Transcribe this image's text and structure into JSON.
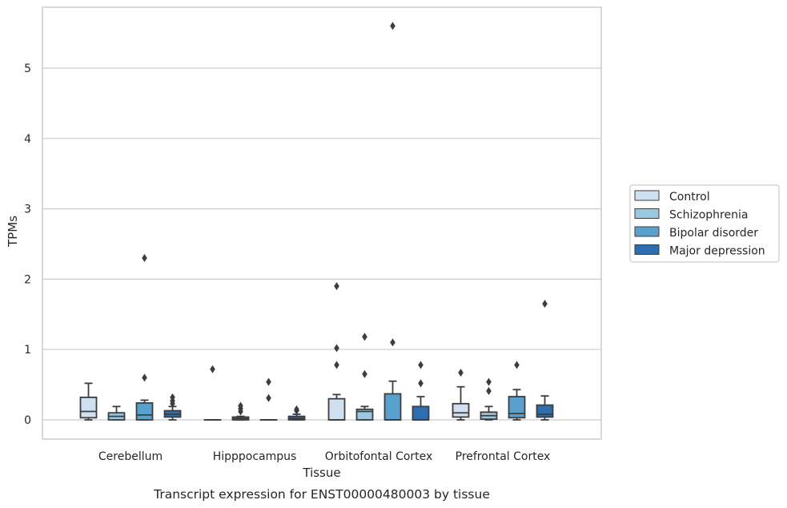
{
  "chart_data": {
    "type": "box",
    "title": "",
    "caption": "Transcript expression for ENST00000480003 by tissue",
    "xlabel": "Tissue",
    "ylabel": "TPMs",
    "ylim": [
      -0.27,
      5.87
    ],
    "yticks": [
      0,
      1,
      2,
      3,
      4,
      5
    ],
    "grid": "horizontal",
    "legend_position": "right",
    "categories": [
      "Cerebellum",
      "Hipppocampus",
      "Orbitofontal Cortex",
      "Prefrontal Cortex"
    ],
    "series": [
      {
        "name": "Control",
        "color": "#cfe0f1",
        "boxes": [
          {
            "whisker_low": 0.0,
            "q1": 0.03,
            "median": 0.12,
            "q3": 0.32,
            "whisker_high": 0.52,
            "outliers": []
          },
          {
            "whisker_low": 0.0,
            "q1": 0.0,
            "median": 0.0,
            "q3": 0.0,
            "whisker_high": 0.0,
            "outliers": [
              0.72
            ]
          },
          {
            "whisker_low": 0.0,
            "q1": 0.0,
            "median": 0.0,
            "q3": 0.3,
            "whisker_high": 0.36,
            "outliers": [
              0.78,
              1.02,
              1.9
            ]
          },
          {
            "whisker_low": 0.0,
            "q1": 0.04,
            "median": 0.1,
            "q3": 0.23,
            "whisker_high": 0.47,
            "outliers": [
              0.67
            ]
          }
        ]
      },
      {
        "name": "Schizophrenia",
        "color": "#9ac8e0",
        "boxes": [
          {
            "whisker_low": 0.0,
            "q1": 0.0,
            "median": 0.05,
            "q3": 0.1,
            "whisker_high": 0.19,
            "outliers": []
          },
          {
            "whisker_low": 0.0,
            "q1": 0.0,
            "median": 0.02,
            "q3": 0.04,
            "whisker_high": 0.05,
            "outliers": [
              0.12,
              0.16,
              0.2
            ]
          },
          {
            "whisker_low": 0.0,
            "q1": 0.0,
            "median": 0.12,
            "q3": 0.15,
            "whisker_high": 0.19,
            "outliers": [
              0.65,
              1.18
            ]
          },
          {
            "whisker_low": 0.0,
            "q1": 0.01,
            "median": 0.06,
            "q3": 0.11,
            "whisker_high": 0.19,
            "outliers": [
              0.41,
              0.54
            ]
          }
        ]
      },
      {
        "name": "Bipolar disorder",
        "color": "#5aa0cd",
        "boxes": [
          {
            "whisker_low": 0.0,
            "q1": 0.0,
            "median": 0.07,
            "q3": 0.24,
            "whisker_high": 0.28,
            "outliers": [
              0.6,
              2.3
            ]
          },
          {
            "whisker_low": 0.0,
            "q1": 0.0,
            "median": 0.0,
            "q3": 0.0,
            "whisker_high": 0.0,
            "outliers": [
              0.31,
              0.54
            ]
          },
          {
            "whisker_low": 0.0,
            "q1": 0.0,
            "median": 0.0,
            "q3": 0.37,
            "whisker_high": 0.55,
            "outliers": [
              1.1,
              5.6
            ]
          },
          {
            "whisker_low": 0.0,
            "q1": 0.03,
            "median": 0.09,
            "q3": 0.33,
            "whisker_high": 0.43,
            "outliers": [
              0.78
            ]
          }
        ]
      },
      {
        "name": "Major depression",
        "color": "#2c6eb0",
        "boxes": [
          {
            "whisker_low": 0.0,
            "q1": 0.04,
            "median": 0.08,
            "q3": 0.13,
            "whisker_high": 0.19,
            "outliers": [
              0.23,
              0.27,
              0.32
            ]
          },
          {
            "whisker_low": 0.0,
            "q1": 0.0,
            "median": 0.02,
            "q3": 0.05,
            "whisker_high": 0.08,
            "outliers": [
              0.13,
              0.15
            ]
          },
          {
            "whisker_low": 0.0,
            "q1": 0.0,
            "median": 0.0,
            "q3": 0.19,
            "whisker_high": 0.33,
            "outliers": [
              0.52,
              0.78
            ]
          },
          {
            "whisker_low": 0.0,
            "q1": 0.04,
            "median": 0.08,
            "q3": 0.21,
            "whisker_high": 0.34,
            "outliers": [
              1.65
            ]
          }
        ]
      }
    ]
  }
}
